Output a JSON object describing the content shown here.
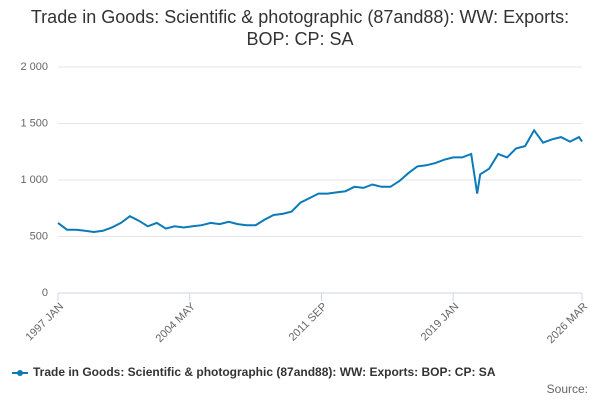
{
  "chart_data": {
    "type": "line",
    "title": "Trade in Goods: Scientific & photographic (87and88): WW: Exports: BOP: CP: SA",
    "source_label": "Source:",
    "x": [
      "1997 JAN",
      "1997 JUL",
      "1998 JAN",
      "1998 JUL",
      "1999 JAN",
      "1999 JUL",
      "2000 JAN",
      "2000 JUL",
      "2001 JAN",
      "2001 JUL",
      "2002 JAN",
      "2002 JUL",
      "2003 JAN",
      "2003 JUL",
      "2004 JAN",
      "2004 JUL",
      "2005 JAN",
      "2005 JUL",
      "2006 JAN",
      "2006 JUL",
      "2007 JAN",
      "2007 JUL",
      "2008 JAN",
      "2008 JUL",
      "2009 JAN",
      "2009 JUL",
      "2010 JAN",
      "2010 JUL",
      "2011 JAN",
      "2011 JUL",
      "2012 JAN",
      "2012 JUL",
      "2013 JAN",
      "2013 JUL",
      "2014 JAN",
      "2014 JUL",
      "2015 JAN",
      "2015 JUL",
      "2016 JAN",
      "2016 JUL",
      "2017 JAN",
      "2017 JUL",
      "2018 JAN",
      "2018 JUL",
      "2019 JAN",
      "2019 JUL",
      "2020 JAN",
      "2020 MAY",
      "2020 JUL",
      "2021 JAN",
      "2021 JUL",
      "2022 JAN",
      "2022 JUL",
      "2023 JAN",
      "2023 JUL",
      "2024 JAN",
      "2024 JUL",
      "2025 JAN",
      "2025 JUL",
      "2026 JAN",
      "2026 MAR"
    ],
    "series": [
      {
        "name": "Trade in Goods: Scientific & photographic (87and88): WW: Exports: BOP: CP: SA",
        "color": "#0a7ab8",
        "values": [
          620,
          560,
          560,
          550,
          540,
          550,
          580,
          620,
          680,
          640,
          590,
          620,
          570,
          590,
          580,
          590,
          600,
          620,
          610,
          630,
          610,
          600,
          600,
          650,
          690,
          700,
          720,
          800,
          840,
          880,
          880,
          890,
          900,
          940,
          930,
          960,
          940,
          940,
          990,
          1060,
          1120,
          1130,
          1150,
          1180,
          1200,
          1200,
          1230,
          880,
          1050,
          1100,
          1230,
          1200,
          1280,
          1300,
          1440,
          1330,
          1360,
          1380,
          1340,
          1380,
          1340
        ]
      }
    ],
    "xticks": [
      "1997 JAN",
      "2004 MAY",
      "2011 SEP",
      "2019 JAN",
      "2026 MAR"
    ],
    "ylim": [
      0,
      2000
    ],
    "yticks": [
      0,
      500,
      {
        "value": 1000,
        "label": "1 000"
      },
      {
        "value": 1500,
        "label": "1 500"
      },
      {
        "value": 2000,
        "label": "2 000"
      }
    ],
    "grid": true,
    "legend": "bottom"
  }
}
